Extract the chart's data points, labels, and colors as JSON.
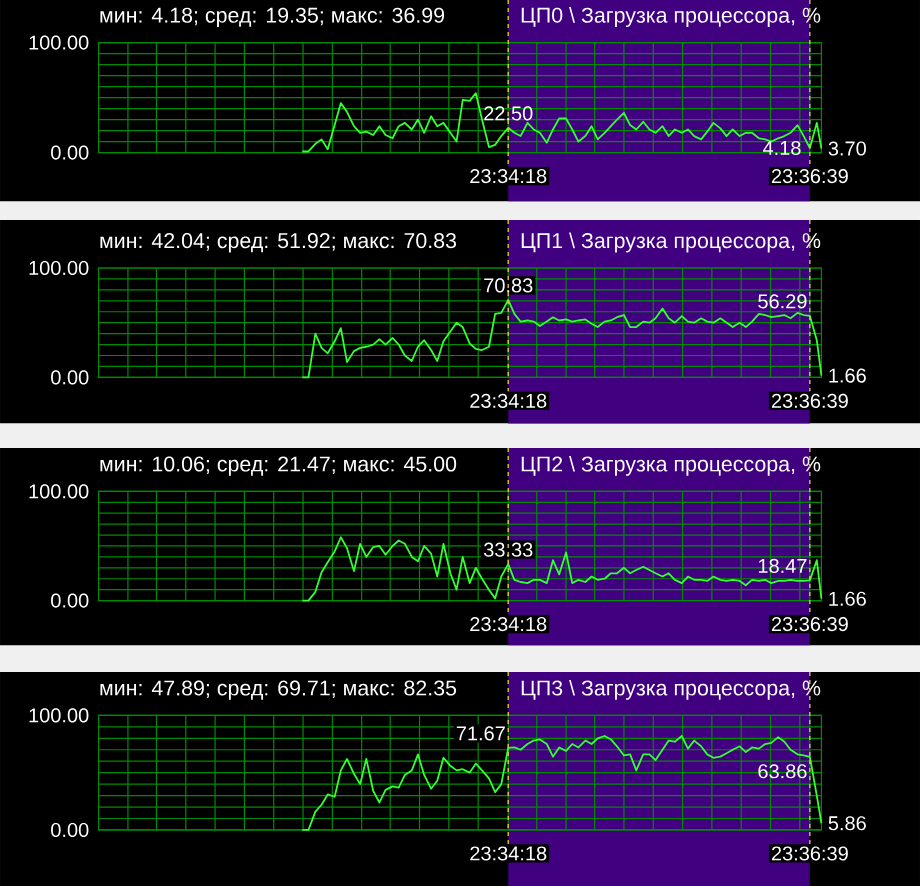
{
  "chart_data": [
    {
      "type": "line",
      "title": "ЦП0 \\ Загрузка процессора, %",
      "subtitle": "мин: 4.18; сред: 19.35; макс: 36.99",
      "x": [
        23.545,
        23.5458,
        23.5467,
        23.5475,
        23.5483,
        23.5492,
        23.55,
        23.5508,
        23.5517,
        23.5525,
        23.5533,
        23.5542,
        23.555,
        23.5558,
        23.5567,
        23.5575,
        23.5583,
        23.5592,
        23.56,
        23.5608,
        23.5617,
        23.5625,
        23.5633,
        23.5642,
        23.565,
        23.5658,
        23.5667,
        23.5675,
        23.5683,
        23.5692,
        23.57,
        23.5708,
        23.5717,
        23.5725,
        23.5733,
        23.5742,
        23.575,
        23.5758,
        23.5767,
        23.5775,
        23.5783,
        23.5792,
        23.58,
        23.5808,
        23.5817,
        23.5825,
        23.5833,
        23.5842,
        23.585,
        23.5858,
        23.5867,
        23.5875,
        23.5883,
        23.5892,
        23.59,
        23.5908,
        23.5917,
        23.5925,
        23.5933,
        23.5942,
        23.595,
        23.5958,
        23.5967,
        23.5975,
        23.5983,
        23.5992,
        23.6,
        23.6008,
        23.6017,
        23.6025,
        23.6033,
        23.6042,
        23.605,
        23.6058,
        23.6067,
        23.6075,
        23.6083,
        23.6092,
        23.61,
        23.6108,
        23.6117,
        23.6123
      ],
      "values": [
        1,
        1,
        8,
        12,
        3,
        25,
        45,
        37,
        24,
        18,
        19,
        16,
        24,
        16,
        13,
        24,
        27,
        21,
        30,
        18,
        33,
        24,
        27,
        18,
        10,
        48,
        47,
        54,
        30,
        5,
        7,
        15,
        22.5,
        18,
        15,
        27,
        21,
        18,
        9,
        21,
        31,
        31,
        21,
        10,
        15,
        24,
        12,
        18,
        24,
        30,
        36,
        25,
        21,
        28,
        21,
        18,
        24,
        15,
        21,
        18,
        21,
        15,
        12,
        19,
        27,
        22,
        15,
        21,
        15,
        18,
        18,
        13,
        12,
        10,
        13,
        15,
        18,
        25,
        15,
        4.18,
        27,
        3.7
      ],
      "color": "#33ff33",
      "xlim": [
        23.5186,
        23.6123
      ],
      "ylim": [
        0,
        100
      ],
      "xticks": [
        {
          "value": 23.5224,
          "label": null
        },
        {
          "value": 23.5261,
          "label": null
        },
        {
          "value": 23.5299,
          "label": null
        },
        {
          "value": 23.5337,
          "label": null
        },
        {
          "value": 23.5375,
          "label": null
        },
        {
          "value": 23.5413,
          "label": null
        },
        {
          "value": 23.5451,
          "label": null
        },
        {
          "value": 23.5489,
          "label": null
        },
        {
          "value": 23.5527,
          "label": null
        },
        {
          "value": 23.5564,
          "label": null
        },
        {
          "value": 23.5602,
          "label": null
        },
        {
          "value": 23.564,
          "label": null
        },
        {
          "value": 23.5678,
          "label": null
        },
        {
          "value": 23.5717,
          "label": "23:34:18"
        },
        {
          "value": 23.5754,
          "label": null
        },
        {
          "value": 23.5792,
          "label": null
        },
        {
          "value": 23.5829,
          "label": null
        },
        {
          "value": 23.5867,
          "label": null
        },
        {
          "value": 23.5905,
          "label": null
        },
        {
          "value": 23.5943,
          "label": null
        },
        {
          "value": 23.5981,
          "label": null
        },
        {
          "value": 23.6019,
          "label": null
        },
        {
          "value": 23.6057,
          "label": null
        },
        {
          "value": 23.6095,
          "label": null
        },
        {
          "value": 23.6108,
          "label": "23:36:39"
        }
      ],
      "yticks": [
        {
          "value": 0,
          "label": "0.00"
        },
        {
          "value": 10,
          "label": null
        },
        {
          "value": 20,
          "label": null
        },
        {
          "value": 30,
          "label": null
        },
        {
          "value": 40,
          "label": null
        },
        {
          "value": 50,
          "label": null
        },
        {
          "value": 60,
          "label": null
        },
        {
          "value": 70,
          "label": null
        },
        {
          "value": 80,
          "label": null
        },
        {
          "value": 90,
          "label": null
        },
        {
          "value": 100,
          "label": "100.00"
        }
      ],
      "grid": true,
      "bands": [
        {
          "axis": "x",
          "from": 23.5717,
          "to": 23.6108,
          "color": "#400080"
        }
      ],
      "annotations": [
        {
          "text": "22.50",
          "x": 23.5717,
          "y": 22.5
        },
        {
          "text": "4.18",
          "x": 23.6108,
          "y": 4.18
        },
        {
          "text": "3.70",
          "x": 23.6123,
          "y": 3.7
        }
      ]
    },
    {
      "type": "line",
      "title": "ЦП1 \\ Загрузка процессора, %",
      "subtitle": "мин: 42.04; сред: 51.92; макс: 70.83",
      "x": [
        23.545,
        23.5458,
        23.5467,
        23.5475,
        23.5483,
        23.5492,
        23.55,
        23.5508,
        23.5517,
        23.5525,
        23.5533,
        23.5542,
        23.555,
        23.5558,
        23.5567,
        23.5575,
        23.5583,
        23.5592,
        23.56,
        23.5608,
        23.5617,
        23.5625,
        23.5633,
        23.5642,
        23.565,
        23.5658,
        23.5667,
        23.5675,
        23.5683,
        23.5692,
        23.57,
        23.5708,
        23.5717,
        23.5725,
        23.5733,
        23.5742,
        23.575,
        23.5758,
        23.5767,
        23.5775,
        23.5783,
        23.5792,
        23.58,
        23.5808,
        23.5817,
        23.5825,
        23.5833,
        23.5842,
        23.585,
        23.5858,
        23.5867,
        23.5875,
        23.5883,
        23.5892,
        23.59,
        23.5908,
        23.5917,
        23.5925,
        23.5933,
        23.5942,
        23.595,
        23.5958,
        23.5967,
        23.5975,
        23.5983,
        23.5992,
        23.6,
        23.6008,
        23.6017,
        23.6025,
        23.6033,
        23.6042,
        23.605,
        23.6058,
        23.6067,
        23.6075,
        23.6083,
        23.6092,
        23.61,
        23.6108,
        23.6117,
        23.6123
      ],
      "values": [
        0,
        0,
        40,
        27,
        22,
        33,
        45,
        14,
        24,
        27,
        28,
        30,
        35,
        30,
        36,
        30,
        20,
        15,
        28,
        34,
        25,
        15,
        33,
        42,
        50,
        46,
        31,
        26,
        25,
        28,
        58,
        59,
        70.83,
        58,
        51,
        52,
        51,
        47,
        51,
        55,
        52,
        53,
        51,
        52,
        53,
        49,
        46,
        51,
        52,
        55,
        57,
        46,
        46,
        51,
        50,
        54,
        63,
        54,
        50,
        56,
        51,
        50,
        54,
        51,
        50,
        54,
        50,
        46,
        50,
        46,
        51,
        58,
        57,
        55,
        56,
        57,
        54,
        59,
        57,
        56.29,
        34,
        1.66
      ],
      "color": "#33ff33",
      "xlim": [
        23.5186,
        23.6123
      ],
      "ylim": [
        0,
        100
      ],
      "xticks": [
        {
          "value": 23.5224,
          "label": null
        },
        {
          "value": 23.5261,
          "label": null
        },
        {
          "value": 23.5299,
          "label": null
        },
        {
          "value": 23.5337,
          "label": null
        },
        {
          "value": 23.5375,
          "label": null
        },
        {
          "value": 23.5413,
          "label": null
        },
        {
          "value": 23.5451,
          "label": null
        },
        {
          "value": 23.5489,
          "label": null
        },
        {
          "value": 23.5527,
          "label": null
        },
        {
          "value": 23.5564,
          "label": null
        },
        {
          "value": 23.5602,
          "label": null
        },
        {
          "value": 23.564,
          "label": null
        },
        {
          "value": 23.5678,
          "label": null
        },
        {
          "value": 23.5717,
          "label": "23:34:18"
        },
        {
          "value": 23.5754,
          "label": null
        },
        {
          "value": 23.5792,
          "label": null
        },
        {
          "value": 23.5829,
          "label": null
        },
        {
          "value": 23.5867,
          "label": null
        },
        {
          "value": 23.5905,
          "label": null
        },
        {
          "value": 23.5943,
          "label": null
        },
        {
          "value": 23.5981,
          "label": null
        },
        {
          "value": 23.6019,
          "label": null
        },
        {
          "value": 23.6057,
          "label": null
        },
        {
          "value": 23.6095,
          "label": null
        },
        {
          "value": 23.6108,
          "label": "23:36:39"
        }
      ],
      "yticks": [
        {
          "value": 0,
          "label": "0.00"
        },
        {
          "value": 10,
          "label": null
        },
        {
          "value": 20,
          "label": null
        },
        {
          "value": 30,
          "label": null
        },
        {
          "value": 40,
          "label": null
        },
        {
          "value": 50,
          "label": null
        },
        {
          "value": 60,
          "label": null
        },
        {
          "value": 70,
          "label": null
        },
        {
          "value": 80,
          "label": null
        },
        {
          "value": 90,
          "label": null
        },
        {
          "value": 100,
          "label": "100.00"
        }
      ],
      "grid": true,
      "bands": [
        {
          "axis": "x",
          "from": 23.5717,
          "to": 23.6108,
          "color": "#400080"
        }
      ],
      "annotations": [
        {
          "text": "70.83",
          "x": 23.5717,
          "y": 70.83
        },
        {
          "text": "56.29",
          "x": 23.6108,
          "y": 56.29
        },
        {
          "text": "1.66",
          "x": 23.6123,
          "y": 1.66
        }
      ]
    },
    {
      "type": "line",
      "title": "ЦП2 \\ Загрузка процессора, %",
      "subtitle": "мин: 10.06; сред: 21.47; макс: 45.00",
      "x": [
        23.545,
        23.5458,
        23.5467,
        23.5475,
        23.5483,
        23.5492,
        23.55,
        23.5508,
        23.5517,
        23.5525,
        23.5533,
        23.5542,
        23.555,
        23.5558,
        23.5567,
        23.5575,
        23.5583,
        23.5592,
        23.56,
        23.5608,
        23.5617,
        23.5625,
        23.5633,
        23.5642,
        23.565,
        23.5658,
        23.5667,
        23.5675,
        23.5683,
        23.5692,
        23.57,
        23.5708,
        23.5717,
        23.5725,
        23.5733,
        23.5742,
        23.575,
        23.5758,
        23.5767,
        23.5775,
        23.5783,
        23.5792,
        23.58,
        23.5808,
        23.5817,
        23.5825,
        23.5833,
        23.5842,
        23.585,
        23.5858,
        23.5867,
        23.5875,
        23.5883,
        23.5892,
        23.59,
        23.5908,
        23.5917,
        23.5925,
        23.5933,
        23.5942,
        23.595,
        23.5958,
        23.5967,
        23.5975,
        23.5983,
        23.5992,
        23.6,
        23.6008,
        23.6017,
        23.6025,
        23.6033,
        23.6042,
        23.605,
        23.6058,
        23.6067,
        23.6075,
        23.6083,
        23.6092,
        23.61,
        23.6108,
        23.6117,
        23.6123
      ],
      "values": [
        0,
        0,
        8,
        26,
        35,
        45,
        58,
        48,
        27,
        52,
        40,
        49,
        50,
        42,
        50,
        55,
        52,
        40,
        36,
        50,
        43,
        22,
        52,
        25,
        10,
        40,
        16,
        30,
        20,
        10,
        2,
        22,
        33.33,
        19,
        17,
        16,
        19,
        19,
        16,
        37,
        24,
        44,
        16,
        19,
        17,
        22,
        19,
        20,
        25,
        25,
        30,
        25,
        28,
        31,
        28,
        25,
        22,
        25,
        19,
        16,
        22,
        19,
        19,
        18,
        22,
        19,
        18,
        19,
        18,
        14,
        19,
        18,
        19,
        16,
        18,
        18,
        19,
        18,
        18,
        18.47,
        37,
        1.66
      ],
      "color": "#33ff33",
      "xlim": [
        23.5186,
        23.6123
      ],
      "ylim": [
        0,
        100
      ],
      "xticks": [
        {
          "value": 23.5224,
          "label": null
        },
        {
          "value": 23.5261,
          "label": null
        },
        {
          "value": 23.5299,
          "label": null
        },
        {
          "value": 23.5337,
          "label": null
        },
        {
          "value": 23.5375,
          "label": null
        },
        {
          "value": 23.5413,
          "label": null
        },
        {
          "value": 23.5451,
          "label": null
        },
        {
          "value": 23.5489,
          "label": null
        },
        {
          "value": 23.5527,
          "label": null
        },
        {
          "value": 23.5564,
          "label": null
        },
        {
          "value": 23.5602,
          "label": null
        },
        {
          "value": 23.564,
          "label": null
        },
        {
          "value": 23.5678,
          "label": null
        },
        {
          "value": 23.5717,
          "label": "23:34:18"
        },
        {
          "value": 23.5754,
          "label": null
        },
        {
          "value": 23.5792,
          "label": null
        },
        {
          "value": 23.5829,
          "label": null
        },
        {
          "value": 23.5867,
          "label": null
        },
        {
          "value": 23.5905,
          "label": null
        },
        {
          "value": 23.5943,
          "label": null
        },
        {
          "value": 23.5981,
          "label": null
        },
        {
          "value": 23.6019,
          "label": null
        },
        {
          "value": 23.6057,
          "label": null
        },
        {
          "value": 23.6095,
          "label": null
        },
        {
          "value": 23.6108,
          "label": "23:36:39"
        }
      ],
      "yticks": [
        {
          "value": 0,
          "label": "0.00"
        },
        {
          "value": 10,
          "label": null
        },
        {
          "value": 20,
          "label": null
        },
        {
          "value": 30,
          "label": null
        },
        {
          "value": 40,
          "label": null
        },
        {
          "value": 50,
          "label": null
        },
        {
          "value": 60,
          "label": null
        },
        {
          "value": 70,
          "label": null
        },
        {
          "value": 80,
          "label": null
        },
        {
          "value": 90,
          "label": null
        },
        {
          "value": 100,
          "label": "100.00"
        }
      ],
      "grid": true,
      "bands": [
        {
          "axis": "x",
          "from": 23.5717,
          "to": 23.6108,
          "color": "#400080"
        }
      ],
      "annotations": [
        {
          "text": "33.33",
          "x": 23.5717,
          "y": 33.33
        },
        {
          "text": "18.47",
          "x": 23.6108,
          "y": 18.47
        },
        {
          "text": "1.66",
          "x": 23.6123,
          "y": 1.66
        }
      ]
    },
    {
      "type": "line",
      "title": "ЦП3 \\ Загрузка процессора, %",
      "subtitle": "мин: 47.89; сред: 69.71; макс: 82.35",
      "x": [
        23.545,
        23.5458,
        23.5467,
        23.5475,
        23.5483,
        23.5492,
        23.55,
        23.5508,
        23.5517,
        23.5525,
        23.5533,
        23.5542,
        23.555,
        23.5558,
        23.5567,
        23.5575,
        23.5583,
        23.5592,
        23.56,
        23.5608,
        23.5617,
        23.5625,
        23.5633,
        23.5642,
        23.565,
        23.5658,
        23.5667,
        23.5675,
        23.5683,
        23.5692,
        23.57,
        23.5708,
        23.5717,
        23.5725,
        23.5733,
        23.5742,
        23.575,
        23.5758,
        23.5767,
        23.5775,
        23.5783,
        23.5792,
        23.58,
        23.5808,
        23.5817,
        23.5825,
        23.5833,
        23.5842,
        23.585,
        23.5858,
        23.5867,
        23.5875,
        23.5883,
        23.5892,
        23.59,
        23.5908,
        23.5917,
        23.5925,
        23.5933,
        23.5942,
        23.595,
        23.5958,
        23.5967,
        23.5975,
        23.5983,
        23.5992,
        23.6,
        23.6008,
        23.6017,
        23.6025,
        23.6033,
        23.6042,
        23.605,
        23.6058,
        23.6067,
        23.6075,
        23.6083,
        23.6092,
        23.61,
        23.6108,
        23.6117,
        23.6123
      ],
      "values": [
        0,
        0,
        16,
        22,
        31,
        29,
        52,
        62,
        49,
        40,
        62,
        34,
        24,
        35,
        38,
        37,
        48,
        52,
        66,
        48,
        36,
        43,
        63,
        56,
        52,
        53,
        50,
        58,
        52,
        45,
        33,
        40,
        71.67,
        72,
        70,
        75,
        78,
        79,
        75,
        64,
        72,
        69,
        75,
        72,
        78,
        75,
        80,
        82,
        79,
        73,
        65,
        66,
        52,
        66,
        66,
        61,
        70,
        78,
        77,
        82,
        71,
        78,
        73,
        66,
        63,
        64,
        67,
        70,
        73,
        68,
        72,
        71,
        75,
        76,
        81,
        77,
        70,
        66,
        65,
        63.86,
        30,
        5.86
      ],
      "color": "#33ff33",
      "xlim": [
        23.5186,
        23.6123
      ],
      "ylim": [
        0,
        100
      ],
      "xticks": [
        {
          "value": 23.5224,
          "label": null
        },
        {
          "value": 23.5261,
          "label": null
        },
        {
          "value": 23.5299,
          "label": null
        },
        {
          "value": 23.5337,
          "label": null
        },
        {
          "value": 23.5375,
          "label": null
        },
        {
          "value": 23.5413,
          "label": null
        },
        {
          "value": 23.5451,
          "label": null
        },
        {
          "value": 23.5489,
          "label": null
        },
        {
          "value": 23.5527,
          "label": null
        },
        {
          "value": 23.5564,
          "label": null
        },
        {
          "value": 23.5602,
          "label": null
        },
        {
          "value": 23.564,
          "label": null
        },
        {
          "value": 23.5678,
          "label": null
        },
        {
          "value": 23.5717,
          "label": "23:34:18"
        },
        {
          "value": 23.5754,
          "label": null
        },
        {
          "value": 23.5792,
          "label": null
        },
        {
          "value": 23.5829,
          "label": null
        },
        {
          "value": 23.5867,
          "label": null
        },
        {
          "value": 23.5905,
          "label": null
        },
        {
          "value": 23.5943,
          "label": null
        },
        {
          "value": 23.5981,
          "label": null
        },
        {
          "value": 23.6019,
          "label": null
        },
        {
          "value": 23.6057,
          "label": null
        },
        {
          "value": 23.6095,
          "label": null
        },
        {
          "value": 23.6108,
          "label": "23:36:39"
        }
      ],
      "yticks": [
        {
          "value": 0,
          "label": "0.00"
        },
        {
          "value": 10,
          "label": null
        },
        {
          "value": 20,
          "label": null
        },
        {
          "value": 30,
          "label": null
        },
        {
          "value": 40,
          "label": null
        },
        {
          "value": 50,
          "label": null
        },
        {
          "value": 60,
          "label": null
        },
        {
          "value": 70,
          "label": null
        },
        {
          "value": 80,
          "label": null
        },
        {
          "value": 90,
          "label": null
        },
        {
          "value": 100,
          "label": "100.00"
        }
      ],
      "grid": true,
      "bands": [
        {
          "axis": "x",
          "from": 23.5717,
          "to": 23.6108,
          "color": "#400080"
        }
      ],
      "annotations": [
        {
          "text": "71.67",
          "x": 23.5717,
          "y": 71.67
        },
        {
          "text": "63.86",
          "x": 23.6108,
          "y": 63.86
        },
        {
          "text": "5.86",
          "x": 23.6123,
          "y": 5.86
        }
      ]
    }
  ]
}
